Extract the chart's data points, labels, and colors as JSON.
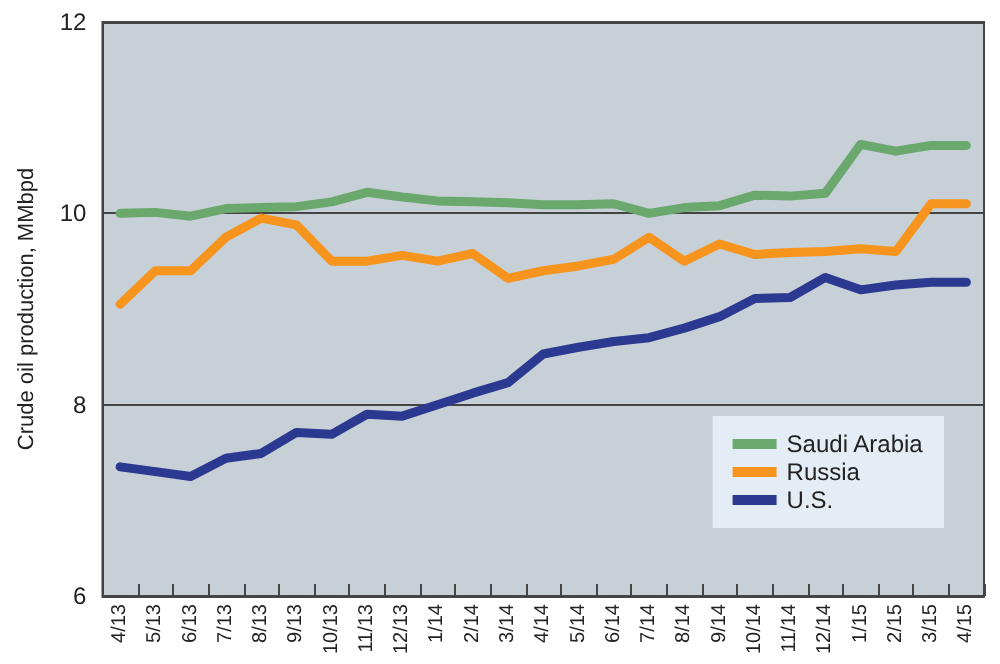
{
  "chart_data": {
    "type": "line",
    "ylabel": "Crude oil production, MMbpd",
    "categories": [
      "4/13",
      "5/13",
      "6/13",
      "7/13",
      "8/13",
      "9/13",
      "10/13",
      "11/13",
      "12/13",
      "1/14",
      "2/14",
      "3/14",
      "4/14",
      "5/14",
      "6/14",
      "7/14",
      "8/14",
      "9/14",
      "10/14",
      "11/14",
      "12/14",
      "1/15",
      "2/15",
      "3/15",
      "4/15"
    ],
    "series": [
      {
        "name": "Saudi Arabia",
        "color": "#6aa86e",
        "values": [
          10.0,
          10.01,
          9.97,
          10.05,
          10.06,
          10.07,
          10.12,
          10.22,
          10.17,
          10.13,
          10.12,
          10.11,
          10.09,
          10.09,
          10.1,
          10.0,
          10.06,
          10.08,
          10.19,
          10.18,
          10.21,
          10.72,
          10.65,
          10.71,
          10.71
        ]
      },
      {
        "name": "Russia",
        "color": "#f7941d",
        "values": [
          9.05,
          9.4,
          9.4,
          9.75,
          9.95,
          9.88,
          9.5,
          9.5,
          9.56,
          9.5,
          9.58,
          9.32,
          9.4,
          9.45,
          9.52,
          9.75,
          9.5,
          9.68,
          9.57,
          9.59,
          9.6,
          9.63,
          9.6,
          10.1,
          10.1
        ]
      },
      {
        "name": "U.S.",
        "color": "#2b3990",
        "values": [
          7.35,
          7.3,
          7.25,
          7.44,
          7.49,
          7.71,
          7.69,
          7.9,
          7.88,
          8.0,
          8.12,
          8.23,
          8.53,
          8.6,
          8.66,
          8.7,
          8.8,
          8.92,
          9.11,
          9.12,
          9.33,
          9.2,
          9.25,
          9.28,
          9.28
        ]
      }
    ],
    "ylim": [
      6,
      12
    ],
    "yticks": [
      6,
      8,
      10,
      12
    ],
    "grid": "y",
    "legend": "bottom right",
    "marker": "none",
    "line_style": "solid"
  }
}
